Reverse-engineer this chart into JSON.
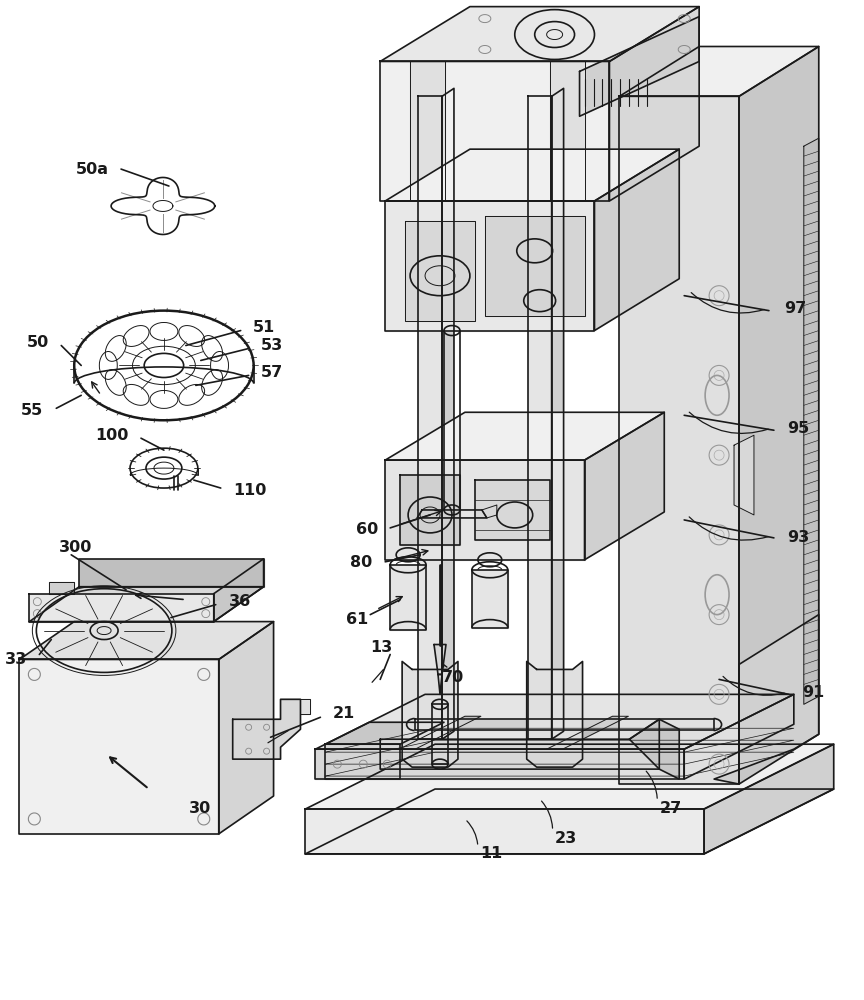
{
  "background_color": "#ffffff",
  "line_color": "#1a1a1a",
  "figure_width": 8.64,
  "figure_height": 10.0,
  "dpi": 100,
  "lw_main": 1.2,
  "lw_thin": 0.7,
  "lw_thick": 1.8,
  "gray_light": "#e8e8e8",
  "gray_mid": "#d0d0d0",
  "gray_dark": "#b8b8b8",
  "gray_fill": "#f0f0f0"
}
